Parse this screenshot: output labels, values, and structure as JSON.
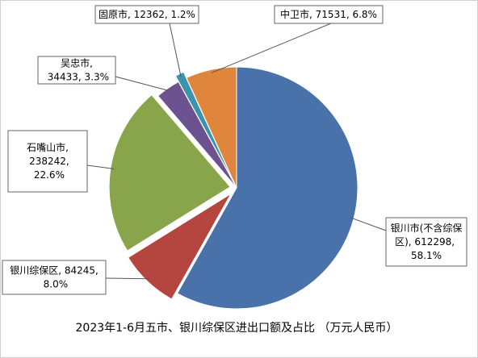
{
  "chart_data": {
    "type": "pie",
    "title": "2023年1-6月五市、银川综保区进出口额及占比 （万元人民币）",
    "values": [
      612298,
      84245,
      238242,
      34433,
      12362,
      71531
    ],
    "value_labels": [
      "银川市(不含综保区), 612298, 58.1%",
      "银川综保区, 84245, 8.0%",
      "石嘴山市, 238242, 22.6%",
      "吴忠市, 34433, 3.3%",
      "固原市, 12362, 1.2%",
      "中卫市, 71531, 6.8%"
    ],
    "colors": [
      "#4a72aa",
      "#b4463f",
      "#89a54b",
      "#6c5290",
      "#3b94ae",
      "#e0863c"
    ]
  }
}
